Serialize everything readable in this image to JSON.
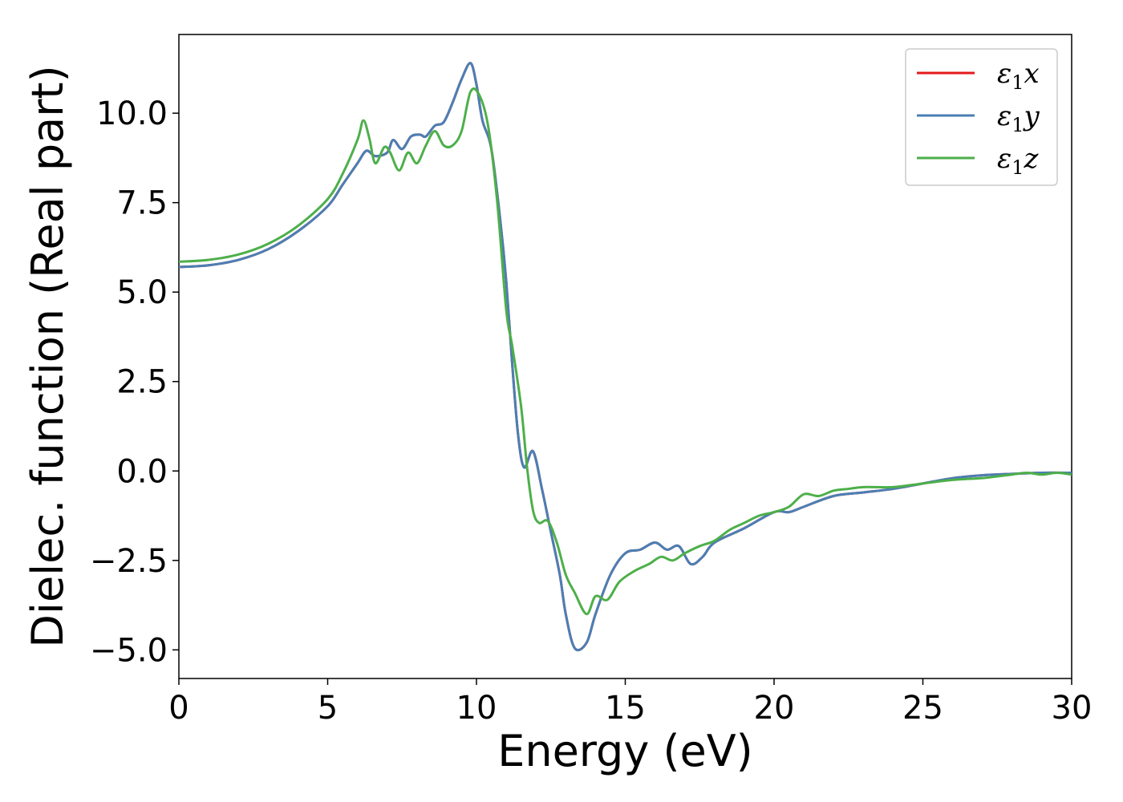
{
  "chart_data": {
    "type": "line",
    "title": "",
    "xlabel": "Energy (eV)",
    "ylabel": "Dielec. function (Real part)",
    "xlim": [
      0,
      30
    ],
    "ylim": [
      -5.8,
      12.2
    ],
    "x_ticks": [
      0,
      5,
      10,
      15,
      20,
      25,
      30
    ],
    "x_tick_labels": [
      "0",
      "5",
      "10",
      "15",
      "20",
      "25",
      "30"
    ],
    "y_ticks": [
      -5.0,
      -2.5,
      0.0,
      2.5,
      5.0,
      7.5,
      10.0
    ],
    "y_tick_labels": [
      "−5.0",
      "−2.5",
      "0.0",
      "2.5",
      "5.0",
      "7.5",
      "10.0"
    ],
    "grid": false,
    "legend_position": "top-right",
    "series": [
      {
        "name": "ε₁x",
        "legend_main": "ε",
        "legend_sub": "1",
        "legend_tail": "x",
        "color": "#e41a1c",
        "points": [
          [
            0,
            5.7
          ],
          [
            1,
            5.75
          ],
          [
            2,
            5.9
          ],
          [
            3,
            6.2
          ],
          [
            4,
            6.7
          ],
          [
            5,
            7.4
          ],
          [
            5.5,
            8.0
          ],
          [
            6,
            8.6
          ],
          [
            6.3,
            8.95
          ],
          [
            6.6,
            8.8
          ],
          [
            7,
            8.9
          ],
          [
            7.2,
            9.25
          ],
          [
            7.5,
            9.0
          ],
          [
            7.8,
            9.35
          ],
          [
            8.1,
            9.4
          ],
          [
            8.3,
            9.35
          ],
          [
            8.6,
            9.65
          ],
          [
            8.9,
            9.75
          ],
          [
            9.2,
            10.3
          ],
          [
            9.5,
            10.95
          ],
          [
            9.8,
            11.4
          ],
          [
            10.0,
            10.8
          ],
          [
            10.2,
            9.8
          ],
          [
            10.5,
            9.0
          ],
          [
            10.8,
            7.0
          ],
          [
            11.0,
            5.3
          ],
          [
            11.2,
            3.0
          ],
          [
            11.4,
            1.0
          ],
          [
            11.6,
            0.1
          ],
          [
            11.9,
            0.55
          ],
          [
            12.2,
            -0.5
          ],
          [
            12.5,
            -1.7
          ],
          [
            12.8,
            -2.9
          ],
          [
            13.0,
            -4.0
          ],
          [
            13.3,
            -4.95
          ],
          [
            13.7,
            -4.8
          ],
          [
            14.0,
            -4.0
          ],
          [
            14.5,
            -2.9
          ],
          [
            15.0,
            -2.3
          ],
          [
            15.5,
            -2.2
          ],
          [
            16.0,
            -2.0
          ],
          [
            16.4,
            -2.2
          ],
          [
            16.8,
            -2.1
          ],
          [
            17.2,
            -2.6
          ],
          [
            17.6,
            -2.4
          ],
          [
            18.0,
            -2.0
          ],
          [
            19.0,
            -1.6
          ],
          [
            20.0,
            -1.15
          ],
          [
            20.5,
            -1.15
          ],
          [
            21.0,
            -1.0
          ],
          [
            22.0,
            -0.7
          ],
          [
            23.0,
            -0.6
          ],
          [
            24.0,
            -0.5
          ],
          [
            25.0,
            -0.35
          ],
          [
            26.0,
            -0.2
          ],
          [
            27.0,
            -0.12
          ],
          [
            28.0,
            -0.08
          ],
          [
            29.0,
            -0.05
          ],
          [
            30.0,
            -0.05
          ]
        ]
      },
      {
        "name": "ε₁y",
        "legend_main": "ε",
        "legend_sub": "1",
        "legend_tail": "y",
        "color": "#4a7fb4",
        "points": [
          [
            0,
            5.7
          ],
          [
            1,
            5.75
          ],
          [
            2,
            5.9
          ],
          [
            3,
            6.2
          ],
          [
            4,
            6.7
          ],
          [
            5,
            7.4
          ],
          [
            5.5,
            8.0
          ],
          [
            6,
            8.6
          ],
          [
            6.3,
            8.95
          ],
          [
            6.6,
            8.8
          ],
          [
            7,
            8.9
          ],
          [
            7.2,
            9.25
          ],
          [
            7.5,
            9.0
          ],
          [
            7.8,
            9.35
          ],
          [
            8.1,
            9.4
          ],
          [
            8.3,
            9.35
          ],
          [
            8.6,
            9.65
          ],
          [
            8.9,
            9.75
          ],
          [
            9.2,
            10.3
          ],
          [
            9.5,
            10.95
          ],
          [
            9.8,
            11.4
          ],
          [
            10.0,
            10.8
          ],
          [
            10.2,
            9.8
          ],
          [
            10.5,
            9.0
          ],
          [
            10.8,
            7.0
          ],
          [
            11.0,
            5.3
          ],
          [
            11.2,
            3.0
          ],
          [
            11.4,
            1.0
          ],
          [
            11.6,
            0.1
          ],
          [
            11.9,
            0.55
          ],
          [
            12.2,
            -0.5
          ],
          [
            12.5,
            -1.7
          ],
          [
            12.8,
            -2.9
          ],
          [
            13.0,
            -4.0
          ],
          [
            13.3,
            -4.95
          ],
          [
            13.7,
            -4.8
          ],
          [
            14.0,
            -4.0
          ],
          [
            14.5,
            -2.9
          ],
          [
            15.0,
            -2.3
          ],
          [
            15.5,
            -2.2
          ],
          [
            16.0,
            -2.0
          ],
          [
            16.4,
            -2.2
          ],
          [
            16.8,
            -2.1
          ],
          [
            17.2,
            -2.6
          ],
          [
            17.6,
            -2.4
          ],
          [
            18.0,
            -2.0
          ],
          [
            19.0,
            -1.6
          ],
          [
            20.0,
            -1.15
          ],
          [
            20.5,
            -1.15
          ],
          [
            21.0,
            -1.0
          ],
          [
            22.0,
            -0.7
          ],
          [
            23.0,
            -0.6
          ],
          [
            24.0,
            -0.5
          ],
          [
            25.0,
            -0.35
          ],
          [
            26.0,
            -0.2
          ],
          [
            27.0,
            -0.12
          ],
          [
            28.0,
            -0.08
          ],
          [
            29.0,
            -0.05
          ],
          [
            30.0,
            -0.05
          ]
        ]
      },
      {
        "name": "ε₁z",
        "legend_main": "ε",
        "legend_sub": "1",
        "legend_tail": "z",
        "color": "#4daf4a",
        "points": [
          [
            0,
            5.85
          ],
          [
            1,
            5.9
          ],
          [
            2,
            6.05
          ],
          [
            3,
            6.35
          ],
          [
            4,
            6.85
          ],
          [
            5,
            7.6
          ],
          [
            5.5,
            8.3
          ],
          [
            6.0,
            9.25
          ],
          [
            6.2,
            9.8
          ],
          [
            6.4,
            9.3
          ],
          [
            6.6,
            8.6
          ],
          [
            6.9,
            9.05
          ],
          [
            7.1,
            8.9
          ],
          [
            7.4,
            8.4
          ],
          [
            7.7,
            8.9
          ],
          [
            8.0,
            8.6
          ],
          [
            8.3,
            9.1
          ],
          [
            8.6,
            9.5
          ],
          [
            8.9,
            9.1
          ],
          [
            9.2,
            9.1
          ],
          [
            9.5,
            9.5
          ],
          [
            9.8,
            10.6
          ],
          [
            10.1,
            10.5
          ],
          [
            10.4,
            9.6
          ],
          [
            10.7,
            7.5
          ],
          [
            11.0,
            4.5
          ],
          [
            11.2,
            3.5
          ],
          [
            11.5,
            1.8
          ],
          [
            11.7,
            0.1
          ],
          [
            11.9,
            -1.1
          ],
          [
            12.1,
            -1.45
          ],
          [
            12.4,
            -1.4
          ],
          [
            12.7,
            -2.0
          ],
          [
            13.0,
            -2.9
          ],
          [
            13.3,
            -3.4
          ],
          [
            13.7,
            -4.0
          ],
          [
            14.0,
            -3.5
          ],
          [
            14.4,
            -3.6
          ],
          [
            14.8,
            -3.1
          ],
          [
            15.3,
            -2.8
          ],
          [
            15.8,
            -2.6
          ],
          [
            16.2,
            -2.4
          ],
          [
            16.6,
            -2.5
          ],
          [
            17.0,
            -2.3
          ],
          [
            17.5,
            -2.1
          ],
          [
            18.0,
            -1.95
          ],
          [
            18.5,
            -1.65
          ],
          [
            19.0,
            -1.45
          ],
          [
            19.5,
            -1.25
          ],
          [
            20.0,
            -1.15
          ],
          [
            20.5,
            -1.0
          ],
          [
            21.0,
            -0.65
          ],
          [
            21.5,
            -0.7
          ],
          [
            22.0,
            -0.55
          ],
          [
            22.5,
            -0.5
          ],
          [
            23.0,
            -0.45
          ],
          [
            24.0,
            -0.45
          ],
          [
            25.0,
            -0.35
          ],
          [
            26.0,
            -0.25
          ],
          [
            27.0,
            -0.2
          ],
          [
            27.5,
            -0.15
          ],
          [
            28.0,
            -0.1
          ],
          [
            28.5,
            -0.05
          ],
          [
            29.0,
            -0.1
          ],
          [
            29.5,
            -0.05
          ],
          [
            30.0,
            -0.1
          ]
        ]
      }
    ]
  }
}
